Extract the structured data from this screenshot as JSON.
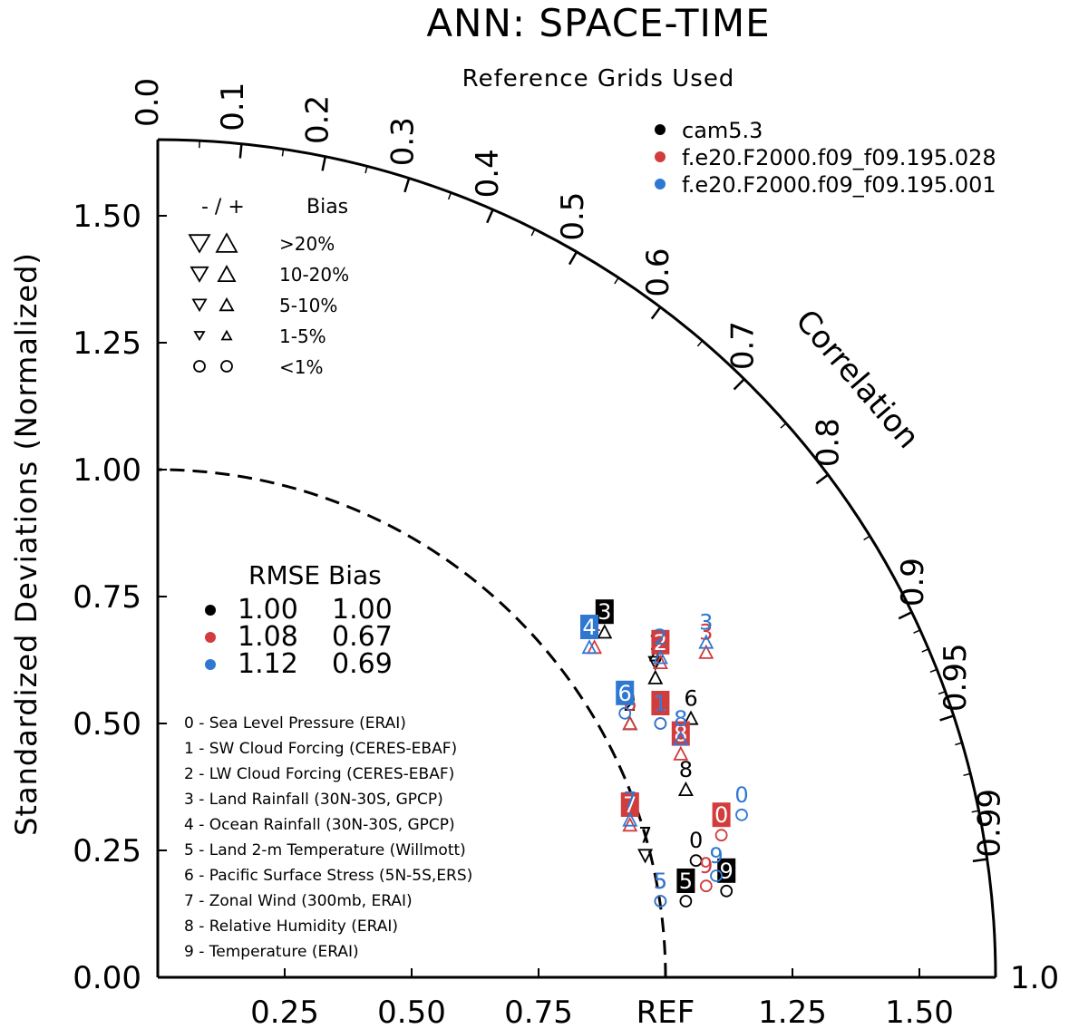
{
  "title": "ANN: SPACE-TIME",
  "subtitle": "Reference Grids Used",
  "chart_data": {
    "type": "taylor",
    "ylabel": "Standardized Deviations (Normalized)",
    "correlation_label": "Correlation",
    "ref_label": "REF",
    "x_ticks": [
      "0.25",
      "0.50",
      "0.75",
      "1.25",
      "1.50"
    ],
    "y_ticks": [
      "0.00",
      "0.25",
      "0.50",
      "0.75",
      "1.00",
      "1.25",
      "1.50"
    ],
    "corr_ticks": [
      "0.0",
      "0.1",
      "0.2",
      "0.3",
      "0.4",
      "0.5",
      "0.6",
      "0.7",
      "0.8",
      "0.9",
      "0.95",
      "0.99",
      "1.0"
    ],
    "xlim": [
      0,
      1.65
    ],
    "ylim": [
      0,
      1.65
    ],
    "models": [
      {
        "name": "cam5.3",
        "color": "#000000",
        "rmse": "1.00",
        "bias": "1.00"
      },
      {
        "name": "f.e20.F2000.f09_f09.195.028",
        "color": "#d23c3c",
        "rmse": "1.08",
        "bias": "0.67"
      },
      {
        "name": "f.e20.F2000.f09_f09.195.001",
        "color": "#2e78d2",
        "rmse": "1.12",
        "bias": "0.69"
      }
    ],
    "bias_legend": {
      "header_sign": "- / +",
      "header_bias": "Bias",
      "rows": [
        {
          "label": ">20%",
          "shape": "triangle",
          "size": 22
        },
        {
          "label": "10-20%",
          "shape": "triangle",
          "size": 18
        },
        {
          "label": "5-10%",
          "shape": "triangle",
          "size": 14
        },
        {
          "label": "1-5%",
          "shape": "triangle",
          "size": 10
        },
        {
          "label": "<1%",
          "shape": "circle",
          "size": 12
        }
      ]
    },
    "stats_legend": {
      "header_rmse": "RMSE",
      "header_bias": "Bias"
    },
    "variables": [
      "0 - Sea Level Pressure (ERAI)",
      "1 - SW Cloud Forcing (CERES-EBAF)",
      "2 - LW Cloud Forcing (CERES-EBAF)",
      "3 - Land Rainfall (30N-30S, GPCP)",
      "4 - Ocean Rainfall (30N-30S, GPCP)",
      "5 - Land 2-m Temperature (Willmott)",
      "6 - Pacific Surface Stress (5N-5S,ERS)",
      "7 - Zonal Wind (300mb, ERAI)",
      "8 - Relative Humidity (ERAI)",
      "9 - Temperature (ERAI)"
    ],
    "points": [
      {
        "model": 0,
        "label": "0",
        "x": 1.06,
        "y": 0.23,
        "marker": "circle",
        "boxed": false
      },
      {
        "model": 0,
        "label": "1",
        "x": 0.98,
        "y": 0.62,
        "marker": "tri-down",
        "boxed": false
      },
      {
        "model": 0,
        "label": "2",
        "x": 0.93,
        "y": 0.5,
        "marker": "tri-up",
        "boxed": false
      },
      {
        "model": 0,
        "label": "3",
        "x": 0.88,
        "y": 0.68,
        "marker": "tri-up",
        "boxed": true
      },
      {
        "model": 0,
        "label": "4",
        "x": 0.98,
        "y": 0.59,
        "marker": "tri-up",
        "boxed": false
      },
      {
        "model": 0,
        "label": "5",
        "x": 1.04,
        "y": 0.15,
        "marker": "circle",
        "boxed": true
      },
      {
        "model": 0,
        "label": "6",
        "x": 1.05,
        "y": 0.51,
        "marker": "tri-up",
        "boxed": false
      },
      {
        "model": 0,
        "label": "7",
        "x": 0.96,
        "y": 0.24,
        "marker": "tri-down",
        "boxed": false
      },
      {
        "model": 0,
        "label": "8",
        "x": 1.04,
        "y": 0.37,
        "marker": "tri-up",
        "boxed": false
      },
      {
        "model": 0,
        "label": "9",
        "x": 1.12,
        "y": 0.17,
        "marker": "circle",
        "boxed": true
      },
      {
        "model": 1,
        "label": "0",
        "x": 1.11,
        "y": 0.28,
        "marker": "circle",
        "boxed": true
      },
      {
        "model": 1,
        "label": "1",
        "x": 0.99,
        "y": 0.5,
        "marker": "circle",
        "boxed": true
      },
      {
        "model": 1,
        "label": "2",
        "x": 0.99,
        "y": 0.62,
        "marker": "tri-up",
        "boxed": true
      },
      {
        "model": 1,
        "label": "3",
        "x": 1.08,
        "y": 0.64,
        "marker": "tri-up",
        "boxed": false
      },
      {
        "model": 1,
        "label": "4",
        "x": 0.86,
        "y": 0.65,
        "marker": "tri-up",
        "boxed": false
      },
      {
        "model": 1,
        "label": "5",
        "x": 0.99,
        "y": 0.15,
        "marker": "circle",
        "boxed": false
      },
      {
        "model": 1,
        "label": "6",
        "x": 0.93,
        "y": 0.5,
        "marker": "tri-up",
        "boxed": false
      },
      {
        "model": 1,
        "label": "7",
        "x": 0.93,
        "y": 0.3,
        "marker": "tri-up",
        "boxed": true
      },
      {
        "model": 1,
        "label": "8",
        "x": 1.03,
        "y": 0.44,
        "marker": "tri-up",
        "boxed": true
      },
      {
        "model": 1,
        "label": "9",
        "x": 1.08,
        "y": 0.18,
        "marker": "circle",
        "boxed": false
      },
      {
        "model": 2,
        "label": "0",
        "x": 1.15,
        "y": 0.32,
        "marker": "circle",
        "boxed": false
      },
      {
        "model": 2,
        "label": "1",
        "x": 0.99,
        "y": 0.5,
        "marker": "circle",
        "boxed": false
      },
      {
        "model": 2,
        "label": "2",
        "x": 0.99,
        "y": 0.63,
        "marker": "tri-up",
        "boxed": false
      },
      {
        "model": 2,
        "label": "3",
        "x": 1.08,
        "y": 0.66,
        "marker": "tri-up",
        "boxed": false
      },
      {
        "model": 2,
        "label": "4",
        "x": 0.85,
        "y": 0.65,
        "marker": "tri-up",
        "boxed": true
      },
      {
        "model": 2,
        "label": "5",
        "x": 0.99,
        "y": 0.15,
        "marker": "circle",
        "boxed": false
      },
      {
        "model": 2,
        "label": "6",
        "x": 0.92,
        "y": 0.52,
        "marker": "circle",
        "boxed": true
      },
      {
        "model": 2,
        "label": "7",
        "x": 0.93,
        "y": 0.31,
        "marker": "tri-up",
        "boxed": false
      },
      {
        "model": 2,
        "label": "8",
        "x": 1.03,
        "y": 0.47,
        "marker": "tri-up",
        "boxed": false
      },
      {
        "model": 2,
        "label": "9",
        "x": 1.1,
        "y": 0.2,
        "marker": "circle",
        "boxed": false
      }
    ]
  }
}
